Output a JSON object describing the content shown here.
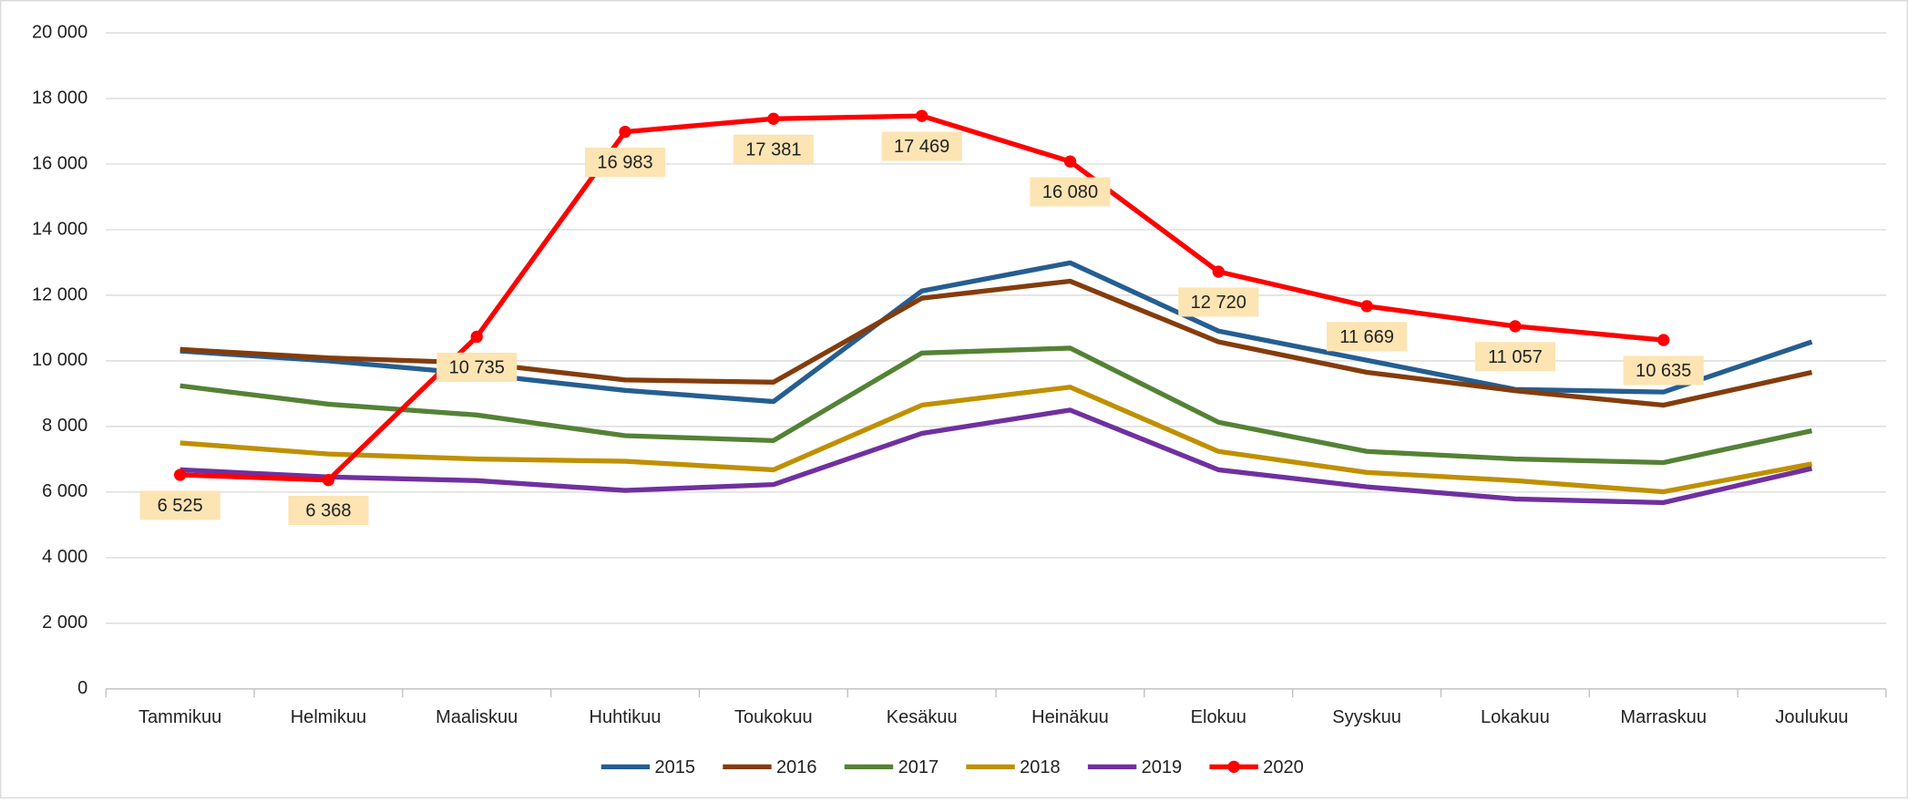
{
  "chart_data": {
    "type": "line",
    "categories": [
      "Tammikuu",
      "Helmikuu",
      "Maaliskuu",
      "Huhtikuu",
      "Toukokuu",
      "Kesäkuu",
      "Heinäkuu",
      "Elokuu",
      "Syyskuu",
      "Lokakuu",
      "Marraskuu",
      "Joulukuu"
    ],
    "ylim": [
      0,
      20000
    ],
    "yticks": [
      0,
      {
        "value": 2000,
        "label": "2 000"
      },
      {
        "value": 4000,
        "label": "4 000"
      },
      {
        "value": 6000,
        "label": "6 000"
      },
      {
        "value": 8000,
        "label": "8 000"
      },
      {
        "value": 10000,
        "label": "10 000"
      },
      {
        "value": 12000,
        "label": "12 000"
      },
      {
        "value": 14000,
        "label": "14 000"
      },
      {
        "value": 16000,
        "label": "16 000"
      },
      {
        "value": 18000,
        "label": "18 000"
      },
      {
        "value": 20000,
        "label": "20 000"
      }
    ],
    "grid": true,
    "legend": "bottom",
    "series": [
      {
        "name": "2015",
        "color": "#255e91",
        "values": [
          10300,
          10000,
          9600,
          9100,
          8760,
          12130,
          12990,
          10910,
          10020,
          9130,
          9050,
          10580
        ]
      },
      {
        "name": "2016",
        "color": "#843c0c",
        "values": [
          10350,
          10090,
          9940,
          9420,
          9350,
          11910,
          12430,
          10580,
          9650,
          9090,
          8650,
          9650
        ]
      },
      {
        "name": "2017",
        "color": "#548235",
        "values": [
          9240,
          8680,
          8350,
          7720,
          7570,
          10240,
          10390,
          8130,
          7240,
          7010,
          6900,
          7870
        ]
      },
      {
        "name": "2018",
        "color": "#bf9000",
        "values": [
          7500,
          7160,
          7010,
          6940,
          6680,
          8650,
          9200,
          7240,
          6600,
          6350,
          6010,
          6860
        ]
      },
      {
        "name": "2019",
        "color": "#7030a0",
        "values": [
          6680,
          6460,
          6350,
          6050,
          6230,
          7790,
          8500,
          6680,
          6160,
          5790,
          5680,
          6720
        ]
      },
      {
        "name": "2020",
        "color": "#ff0000",
        "markers": true,
        "values": [
          6525,
          6368,
          10735,
          16983,
          17381,
          17469,
          16080,
          12720,
          11669,
          11057,
          10635,
          null
        ],
        "value_labels": [
          "6 525",
          "6 368",
          "10 735",
          "16 983",
          "17 381",
          "17 469",
          "16 080",
          "12 720",
          "11 669",
          "11 057",
          "10 635",
          null
        ]
      }
    ]
  }
}
